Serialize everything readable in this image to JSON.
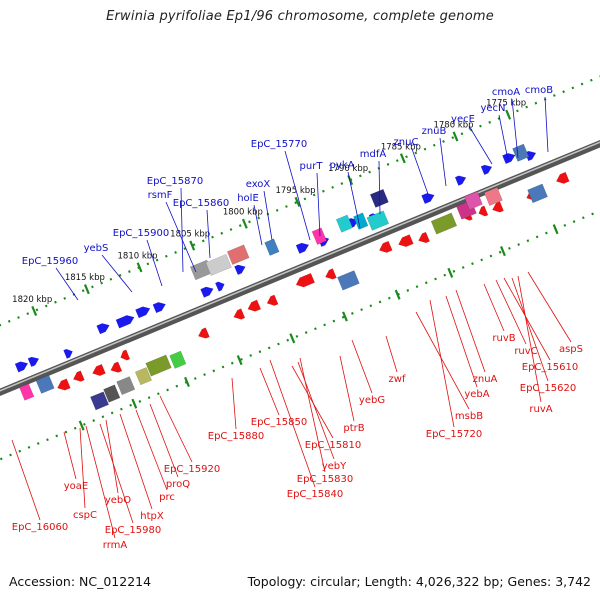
{
  "title": "Erwinia pyrifoliae Ep1/96 chromosome, complete genome",
  "footer": {
    "accession": "Accession: NC_012214",
    "topology": "Topology: circular; Length: 4,026,322 bp; Genes: 3,742"
  },
  "colors": {
    "upper_labels": "#1010c8",
    "lower_labels": "#e01010",
    "backbone": "#707070",
    "ticks": "#1a8a1a"
  },
  "scale_ticks": [
    "1820 kbp",
    "1815 kbp",
    "1810 kbp",
    "1805 kbp",
    "1800 kbp",
    "1795 kbp",
    "1790 kbp",
    "1785 kbp",
    "1780 kbp",
    "1775 kbp"
  ],
  "upper_gene_labels": [
    "EpC_15960",
    "yebS",
    "EpC_15900",
    "EpC_15870",
    "rsmF",
    "EpC_15860",
    "holE",
    "exoX",
    "EpC_15770",
    "purT",
    "pykA",
    "mdfA",
    "znuC",
    "znuB",
    "yecE",
    "yecN",
    "cmoA",
    "cmoB"
  ],
  "lower_gene_labels": [
    "EpC_16060",
    "yoaE",
    "cspC",
    "rrmA",
    "EpC_15980",
    "yebO",
    "htpX",
    "prc",
    "proQ",
    "EpC_15920",
    "EpC_15880",
    "EpC_15850",
    "EpC_15810",
    "yebY",
    "EpC_15830",
    "EpC_15840",
    "ptrB",
    "yebG",
    "zwf",
    "msbB",
    "EpC_15720",
    "yebA",
    "znuA",
    "ruvB",
    "ruvC",
    "EpC_15610",
    "EpC_15620",
    "ruvA",
    "aspS"
  ]
}
